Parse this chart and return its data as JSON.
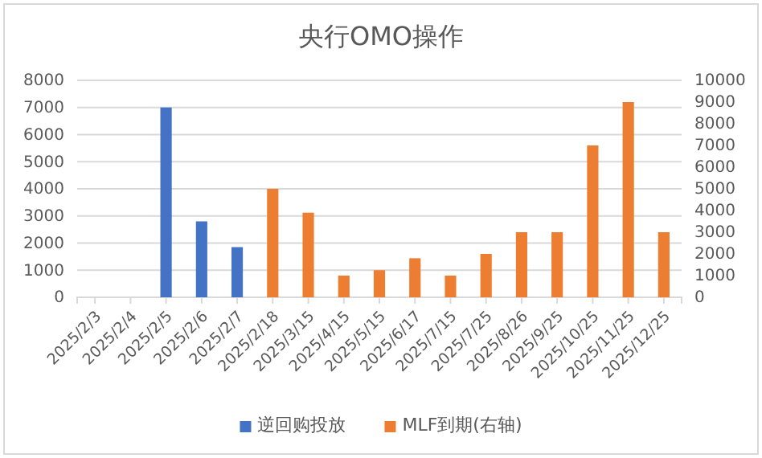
{
  "chart_data": {
    "type": "bar",
    "title": "央行OMO操作",
    "categories": [
      "2025/2/3",
      "2025/2/4",
      "2025/2/5",
      "2025/2/6",
      "2025/2/7",
      "2025/2/18",
      "2025/3/15",
      "2025/4/15",
      "2025/5/15",
      "2025/6/17",
      "2025/7/15",
      "2025/7/25",
      "2025/8/26",
      "2025/9/25",
      "2025/10/25",
      "2025/11/25",
      "2025/12/25"
    ],
    "series": [
      {
        "name": "逆回购投放",
        "color": "#4472c4",
        "values": [
          null,
          null,
          7000,
          2800,
          1850,
          null,
          null,
          null,
          null,
          null,
          null,
          null,
          null,
          null,
          null,
          null,
          null
        ]
      },
      {
        "name": "MLF到期(右轴)",
        "color": "#ed7d31",
        "axis": "y2",
        "values": [
          null,
          null,
          null,
          null,
          null,
          5000,
          3900,
          1000,
          1250,
          1800,
          1000,
          2000,
          3000,
          3000,
          7000,
          9000,
          3000
        ]
      }
    ],
    "ylim": [
      0,
      8000
    ],
    "yticks": [
      0,
      1000,
      2000,
      3000,
      4000,
      5000,
      6000,
      7000,
      8000
    ],
    "y2lim": [
      0,
      10000
    ],
    "y2ticks": [
      0,
      1000,
      2000,
      3000,
      4000,
      5000,
      6000,
      7000,
      8000,
      9000,
      10000
    ],
    "grid": true,
    "legend": "bottom"
  }
}
